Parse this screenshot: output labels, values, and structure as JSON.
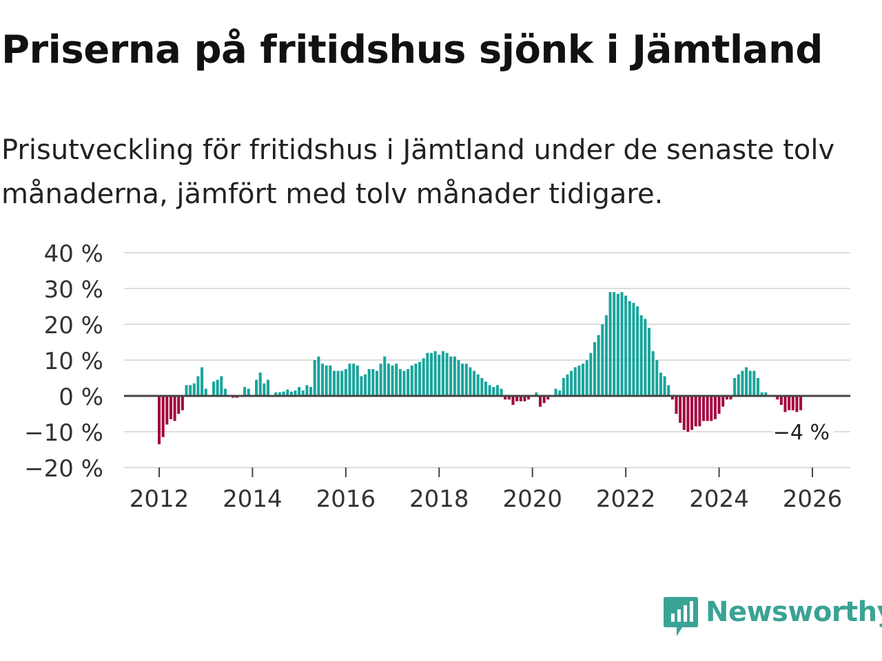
{
  "header": {
    "title": "Priserna på fritidshus sjönk i Jämtland",
    "subtitle": "Prisutveckling för fritidshus i Jämtland under de senaste tolv månaderna, jämfört med tolv månader tidigare."
  },
  "brand": {
    "name": "Newsworthy",
    "color": "#3aa395"
  },
  "colors": {
    "positive": "#1aa59b",
    "negative": "#a3073f",
    "grid": "#dddddd",
    "zero": "#444444"
  },
  "chart_data": {
    "type": "bar",
    "title": "Priserna på fritidshus sjönk i Jämtland",
    "xlabel": "",
    "ylabel": "",
    "ylim": [
      -20,
      40
    ],
    "yticks": [
      40,
      30,
      20,
      10,
      0,
      -10,
      -20
    ],
    "ytick_labels": [
      "40 %",
      "30 %",
      "20 %",
      "10 %",
      "0 %",
      "−10 %",
      "−20 %"
    ],
    "xticks": [
      2012,
      2014,
      2016,
      2018,
      2020,
      2022,
      2024,
      2026
    ],
    "xtick_labels": [
      "2012",
      "2014",
      "2016",
      "2018",
      "2020",
      "2022",
      "2024",
      "2026"
    ],
    "x_start": "2012-01",
    "frequency": "monthly",
    "grid": true,
    "series": [
      {
        "name": "Prisutveckling",
        "values": [
          -13.5,
          -11.5,
          -8,
          -6.5,
          -7,
          -5,
          -4,
          3,
          3,
          3.5,
          5.5,
          8,
          2,
          0,
          4,
          4.5,
          5.5,
          2,
          0,
          -0.5,
          -0.5,
          0,
          2.5,
          2,
          0,
          4.5,
          6.5,
          3.5,
          4.5,
          0,
          1,
          1,
          1.2,
          1.8,
          1.2,
          1.5,
          2.5,
          1.5,
          3,
          2.5,
          10,
          11,
          9,
          8.5,
          8.5,
          7,
          7,
          7,
          7.5,
          9,
          9,
          8.5,
          5.5,
          6,
          7.5,
          7.5,
          7,
          9,
          11,
          9,
          8.5,
          9,
          7.5,
          7,
          7.5,
          8.5,
          9,
          9.5,
          10.5,
          12,
          12,
          12.5,
          11.5,
          12.5,
          12,
          11,
          11,
          10,
          9,
          9,
          8,
          7,
          6,
          5,
          4,
          3,
          2.5,
          3,
          2,
          -1,
          -1,
          -2.5,
          -1.5,
          -1.5,
          -1.5,
          -1,
          0,
          1,
          -3,
          -2,
          -1,
          0,
          2,
          1.5,
          5,
          6,
          7,
          8,
          8.5,
          9,
          10,
          12,
          15,
          17,
          20,
          22.5,
          29,
          29,
          28.5,
          29,
          28,
          26.5,
          26,
          25,
          22.5,
          21.5,
          19,
          12.5,
          10,
          6.5,
          5.5,
          3,
          -1,
          -5,
          -7.5,
          -9.5,
          -10,
          -9.5,
          -8.5,
          -8.5,
          -7,
          -7,
          -7,
          -6.5,
          -5,
          -3,
          -1,
          -1,
          5,
          6,
          7,
          8,
          7,
          7,
          5,
          1,
          1,
          0,
          0,
          -1,
          -2.5,
          -4.5,
          -4,
          -4,
          -4.5,
          -4
        ]
      }
    ],
    "annotations": [
      {
        "text": "−4 %",
        "x": "last",
        "y": -4
      }
    ]
  }
}
